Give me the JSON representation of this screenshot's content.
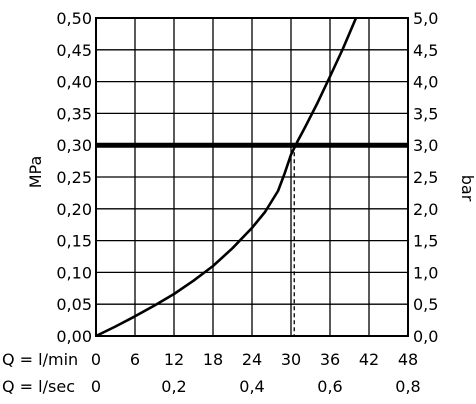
{
  "chart_data": {
    "type": "line",
    "ylabel_left": "MPa",
    "ylabel_right": "bar",
    "y_left_ticks": [
      "0,00",
      "0,05",
      "0,10",
      "0,15",
      "0,20",
      "0,25",
      "0,30",
      "0,35",
      "0,40",
      "0,45",
      "0,50"
    ],
    "y_right_ticks": [
      "0,0",
      "0,5",
      "1,0",
      "1,5",
      "2,0",
      "2,5",
      "3,0",
      "3,5",
      "4,0",
      "4,5",
      "5,0"
    ],
    "ylim": [
      0,
      0.5
    ],
    "x_lmin_label": "Q = l/min",
    "x_lmin_ticks": [
      "0",
      "6",
      "12",
      "18",
      "24",
      "30",
      "36",
      "42",
      "48"
    ],
    "x_lsec_label": "Q = l/sec",
    "x_lsec_ticks": [
      "0",
      "0,2",
      "0,4",
      "0,6",
      "0,8"
    ],
    "xlim": [
      0,
      48
    ],
    "grid": true,
    "series": [
      {
        "x": [
          0,
          3,
          6,
          9,
          12,
          15,
          18,
          21,
          24,
          26,
          28,
          29,
          30,
          31,
          32,
          34,
          36,
          38,
          40
        ],
        "y": [
          0.0,
          0.015,
          0.031,
          0.048,
          0.066,
          0.087,
          0.11,
          0.138,
          0.17,
          0.195,
          0.228,
          0.255,
          0.285,
          0.306,
          0.325,
          0.365,
          0.408,
          0.452,
          0.5
        ],
        "color": "#000000"
      }
    ],
    "reference_line": {
      "y": 0.3,
      "color": "#000000"
    },
    "marker_line": {
      "x": 30.5,
      "y": 0.3,
      "style": "dashed"
    }
  }
}
